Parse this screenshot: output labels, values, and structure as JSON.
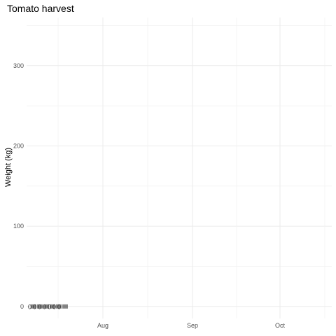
{
  "chart_data": {
    "type": "scatter",
    "title": "Tomato harvest",
    "xlabel": "",
    "ylabel": "Weight (kg)",
    "ylim": [
      -15,
      360
    ],
    "y_ticks": [
      0,
      100,
      200,
      300
    ],
    "x_ticks": [
      "Aug",
      "Sep",
      "Oct"
    ],
    "grid": true,
    "series": [
      {
        "values": [
          0,
          0,
          0,
          0,
          0,
          0,
          0
        ]
      }
    ]
  }
}
